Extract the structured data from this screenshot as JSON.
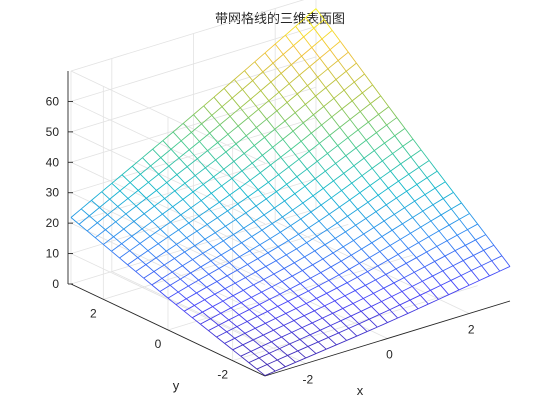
{
  "chart_data": {
    "type": "surface-mesh",
    "title": "带网格线的三维表面图",
    "xlabel": "x",
    "ylabel": "y",
    "zlabel": "",
    "xlim": [
      -3,
      3
    ],
    "ylim": [
      -3,
      3
    ],
    "zlim": [
      0,
      70
    ],
    "xticks": [
      -2,
      0,
      2
    ],
    "yticks": [
      -2,
      0,
      2
    ],
    "zticks": [
      0,
      10,
      20,
      30,
      40,
      50,
      60
    ],
    "grid": "on",
    "colormap": "parula",
    "colormap_colors": [
      "#3e26a8",
      "#4743f8",
      "#2f89f2",
      "#13b8cd",
      "#47c98c",
      "#a7c33f",
      "#f1c039",
      "#f9fb0e"
    ],
    "mesh_samples": 25,
    "corner_values": {
      "x_min_y_min": 0.3,
      "x_max_y_min": 11.5,
      "x_min_y_max": 22.0,
      "x_max_y_max": 66.0
    },
    "z_range": [
      0,
      66
    ]
  }
}
